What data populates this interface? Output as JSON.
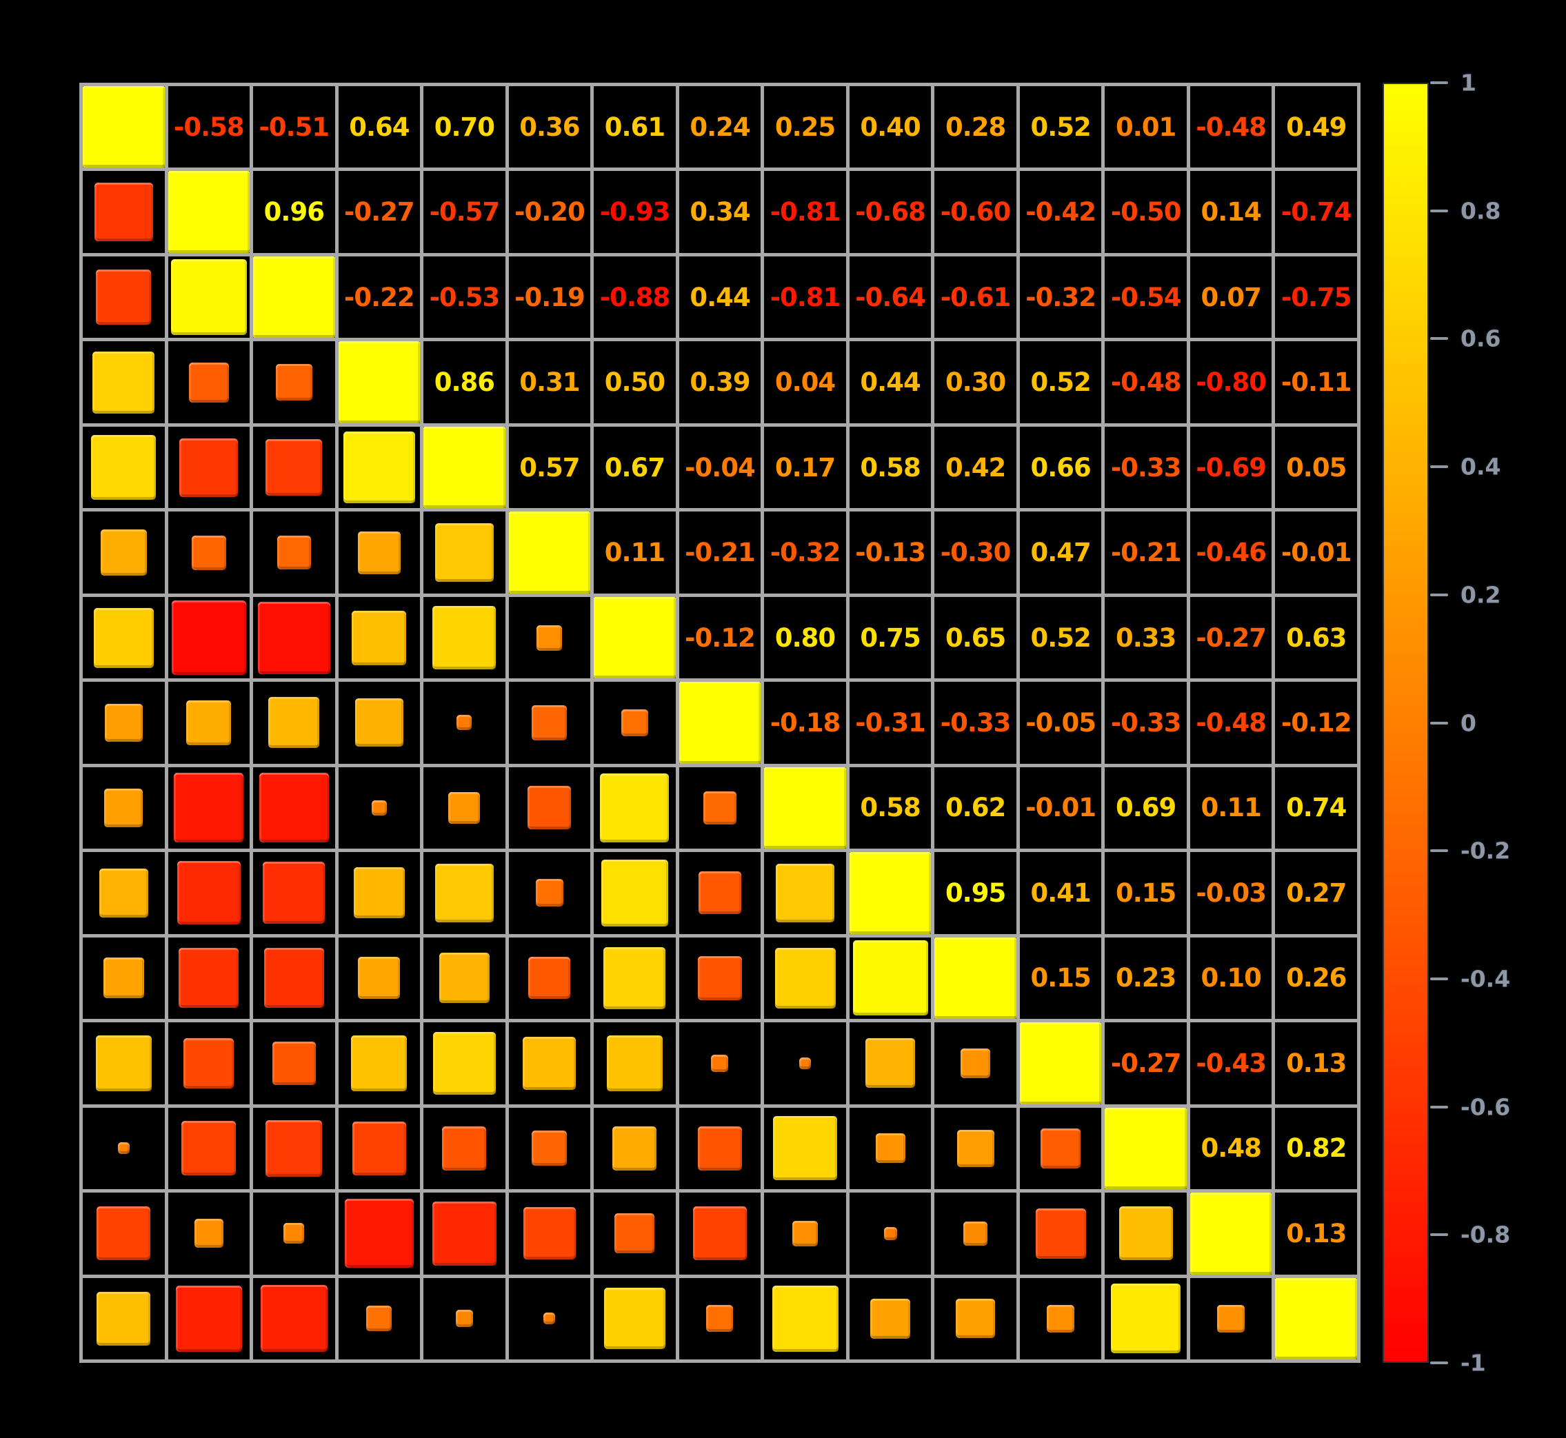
{
  "chart_data": {
    "type": "heatmap",
    "subtype": "correlation-matrix",
    "n": 15,
    "layout": {
      "upper_triangle": "numbers",
      "lower_triangle": "squares",
      "diagonal_value": 1,
      "background": "#000000",
      "grid_color": "#a9a9a9",
      "square_size_rule": "side proportional to sqrt(|r|)",
      "color_rule": "r=-1 -> #ff0000, r=0 -> #ff8000, r=+1 -> #ffff00"
    },
    "matrix": [
      [
        1.0,
        -0.58,
        -0.51,
        0.64,
        0.7,
        0.36,
        0.61,
        0.24,
        0.25,
        0.4,
        0.28,
        0.52,
        0.01,
        -0.48,
        0.49
      ],
      [
        -0.58,
        1.0,
        0.96,
        -0.27,
        -0.57,
        -0.2,
        -0.93,
        0.34,
        -0.81,
        -0.68,
        -0.6,
        -0.42,
        -0.5,
        0.14,
        -0.74
      ],
      [
        -0.51,
        0.96,
        1.0,
        -0.22,
        -0.53,
        -0.19,
        -0.88,
        0.44,
        -0.81,
        -0.64,
        -0.61,
        -0.32,
        -0.54,
        0.07,
        -0.75
      ],
      [
        0.64,
        -0.27,
        -0.22,
        1.0,
        0.86,
        0.31,
        0.5,
        0.39,
        0.04,
        0.44,
        0.3,
        0.52,
        -0.48,
        -0.8,
        -0.11
      ],
      [
        0.7,
        -0.57,
        -0.53,
        0.86,
        1.0,
        0.57,
        0.67,
        -0.04,
        0.17,
        0.58,
        0.42,
        0.66,
        -0.33,
        -0.69,
        0.05
      ],
      [
        0.36,
        -0.2,
        -0.19,
        0.31,
        0.57,
        1.0,
        0.11,
        -0.21,
        -0.32,
        -0.13,
        -0.3,
        0.47,
        -0.21,
        -0.46,
        -0.01
      ],
      [
        0.61,
        -0.93,
        -0.88,
        0.5,
        0.67,
        0.11,
        1.0,
        -0.12,
        0.8,
        0.75,
        0.65,
        0.52,
        0.33,
        -0.27,
        0.63
      ],
      [
        0.24,
        0.34,
        0.44,
        0.39,
        -0.04,
        -0.21,
        -0.12,
        1.0,
        -0.18,
        -0.31,
        -0.33,
        -0.05,
        -0.33,
        -0.48,
        -0.12
      ],
      [
        0.25,
        -0.81,
        -0.81,
        0.04,
        0.17,
        -0.32,
        0.8,
        -0.18,
        1.0,
        0.58,
        0.62,
        -0.01,
        0.69,
        0.11,
        0.74
      ],
      [
        0.4,
        -0.68,
        -0.64,
        0.44,
        0.58,
        -0.13,
        0.75,
        -0.31,
        0.58,
        1.0,
        0.95,
        0.41,
        0.15,
        -0.03,
        0.27
      ],
      [
        0.28,
        -0.6,
        -0.61,
        0.3,
        0.42,
        -0.3,
        0.65,
        -0.33,
        0.62,
        0.95,
        1.0,
        0.15,
        0.23,
        0.1,
        0.26
      ],
      [
        0.52,
        -0.42,
        -0.32,
        0.52,
        0.66,
        0.47,
        0.52,
        -0.05,
        -0.01,
        0.41,
        0.15,
        1.0,
        -0.27,
        -0.43,
        0.13
      ],
      [
        0.01,
        -0.5,
        -0.54,
        -0.48,
        -0.33,
        -0.21,
        0.33,
        -0.33,
        0.69,
        0.15,
        0.23,
        -0.27,
        1.0,
        0.48,
        0.82
      ],
      [
        -0.48,
        0.14,
        0.07,
        -0.8,
        -0.69,
        -0.46,
        -0.27,
        -0.48,
        0.11,
        -0.03,
        0.1,
        -0.43,
        0.48,
        1.0,
        0.13
      ],
      [
        0.49,
        -0.74,
        -0.75,
        -0.11,
        0.05,
        -0.01,
        0.63,
        -0.12,
        0.74,
        0.27,
        0.26,
        0.13,
        0.82,
        0.13,
        1.0
      ]
    ],
    "colorbar": {
      "min": -1,
      "max": 1,
      "top_color": "#ffff00",
      "mid_color": "#ff8000",
      "bottom_color": "#ff0000",
      "tick_labels": [
        "1",
        "0.8",
        "0.6",
        "0.4",
        "0.2",
        "0",
        "-0.2",
        "-0.4",
        "-0.6",
        "-0.8",
        "-1"
      ]
    }
  }
}
